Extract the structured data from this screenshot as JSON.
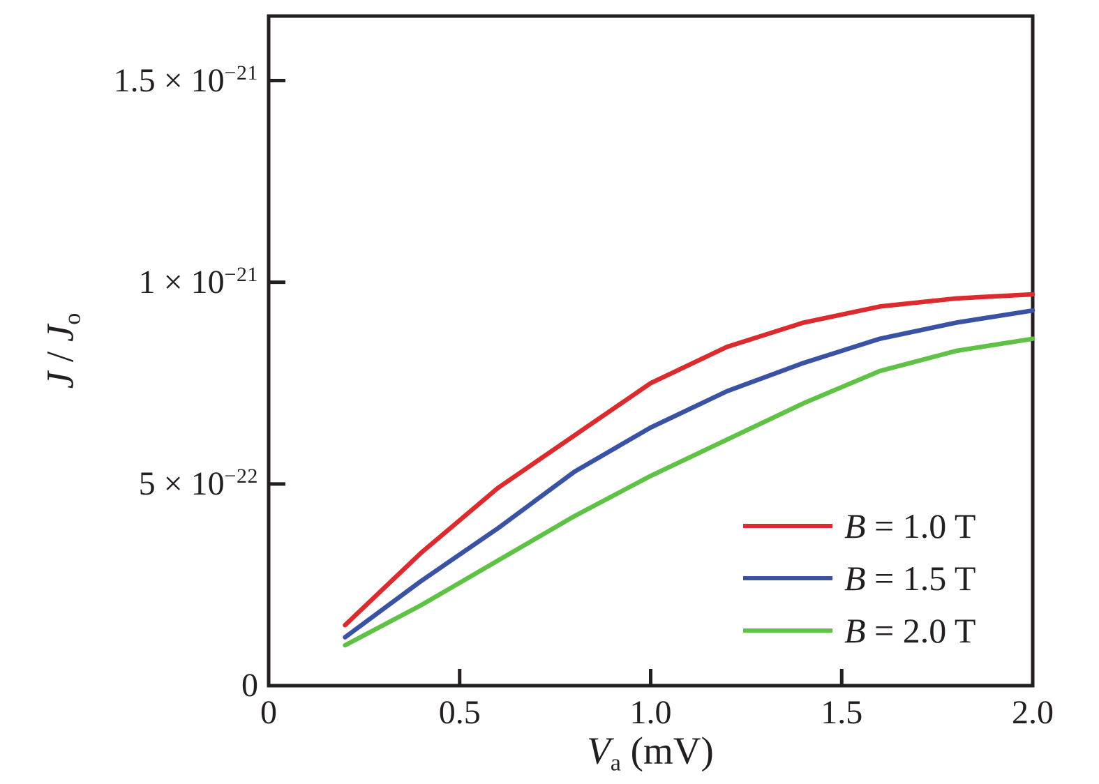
{
  "figure": {
    "background": "#ffffff",
    "frame_color": "#231f20",
    "text_color": "#231f20"
  },
  "chart_data": {
    "type": "line",
    "title": "",
    "xlabel": {
      "symbol": "V",
      "sub": "a",
      "unit": " (mV)",
      "plain": "Va (mV)"
    },
    "ylabel": {
      "j1": "J",
      "sep": " / ",
      "j2": "J",
      "sub": "o",
      "plain": "J / Jo"
    },
    "xlim": [
      0,
      2.0
    ],
    "ylim": [
      0,
      1.66e-21
    ],
    "grid": false,
    "legend_position": "lower right",
    "xticks": [
      {
        "value": 0,
        "label": "0"
      },
      {
        "value": 0.5,
        "label": "0.5"
      },
      {
        "value": 1.0,
        "label": "1.0"
      },
      {
        "value": 1.5,
        "label": "1.5"
      },
      {
        "value": 2.0,
        "label": "2.0"
      }
    ],
    "yticks": [
      {
        "value": 0,
        "text": "0",
        "sup": ""
      },
      {
        "value": 5e-22,
        "text": "5 × 10",
        "sup": "−22"
      },
      {
        "value": 1e-21,
        "text": "1 × 10",
        "sup": "−21"
      },
      {
        "value": 1.5e-21,
        "text": "1.5 × 10",
        "sup": "−21"
      }
    ],
    "x": [
      0.2,
      0.4,
      0.6,
      0.8,
      1.0,
      1.2,
      1.4,
      1.6,
      1.8,
      2.0
    ],
    "series": [
      {
        "name": "B = 1.0 T",
        "legend_symbol": "B",
        "legend_rest": " = 1.0 T",
        "color": "#dc2b2f",
        "values": [
          1.5e-22,
          3.3e-22,
          4.9e-22,
          6.2e-22,
          7.5e-22,
          8.4e-22,
          9e-22,
          9.4e-22,
          9.6e-22,
          9.7e-22
        ]
      },
      {
        "name": "B = 1.5 T",
        "legend_symbol": "B",
        "legend_rest": " = 1.5 T",
        "color": "#3a52a4",
        "values": [
          1.2e-22,
          2.6e-22,
          3.9e-22,
          5.3e-22,
          6.4e-22,
          7.3e-22,
          8e-22,
          8.6e-22,
          9e-22,
          9.3e-22
        ]
      },
      {
        "name": "B = 2.0 T",
        "legend_symbol": "B",
        "legend_rest": " = 2.0 T",
        "color": "#5fc246",
        "values": [
          1e-22,
          2e-22,
          3.1e-22,
          4.2e-22,
          5.2e-22,
          6.1e-22,
          7e-22,
          7.8e-22,
          8.3e-22,
          8.6e-22
        ]
      }
    ]
  }
}
